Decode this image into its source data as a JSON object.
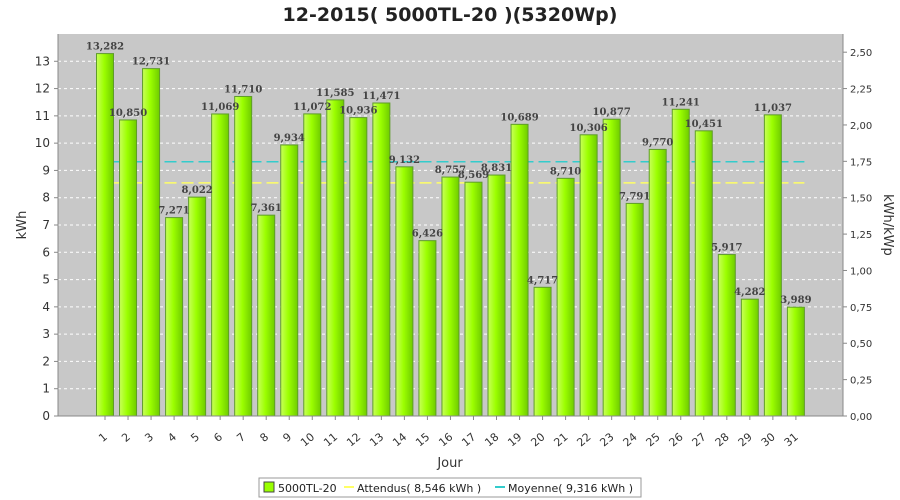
{
  "chart_data": {
    "type": "bar",
    "title": "12-2015( 5000TL-20 )(5320Wp)",
    "xlabel": "Jour",
    "ylabel": "kWh",
    "y2label": "kWh/kWp",
    "ylim": [
      0,
      14
    ],
    "y2lim": [
      0,
      2.625
    ],
    "yticks": [
      "0",
      "1",
      "2",
      "3",
      "4",
      "5",
      "6",
      "7",
      "8",
      "9",
      "10",
      "11",
      "12",
      "13"
    ],
    "y2ticks": [
      "0,00",
      "0,25",
      "0,50",
      "0,75",
      "1,00",
      "1,25",
      "1,50",
      "1,75",
      "2,00",
      "2,25",
      "2,50"
    ],
    "categories": [
      "1",
      "2",
      "3",
      "4",
      "5",
      "6",
      "7",
      "8",
      "9",
      "10",
      "11",
      "12",
      "13",
      "14",
      "15",
      "16",
      "17",
      "18",
      "19",
      "20",
      "21",
      "22",
      "23",
      "24",
      "25",
      "26",
      "27",
      "28",
      "29",
      "30",
      "31"
    ],
    "series": [
      {
        "name": "5000TL-20",
        "values": [
          13.282,
          10.85,
          12.731,
          7.271,
          8.022,
          11.069,
          11.71,
          7.361,
          9.934,
          11.072,
          11.585,
          10.936,
          11.471,
          9.132,
          6.426,
          8.757,
          8.569,
          8.831,
          10.689,
          4.717,
          8.71,
          10.306,
          10.877,
          7.791,
          9.77,
          11.241,
          10.451,
          5.917,
          4.282,
          11.037,
          3.989
        ],
        "labels": [
          "13,282",
          "10,850",
          "12,731",
          "7,271",
          "8,022",
          "11,069",
          "11,710",
          "7,361",
          "9,934",
          "11,072",
          "11,585",
          "10,936",
          "11,471",
          "9,132",
          "6,426",
          "8,757",
          "8,569",
          "8,831",
          "10,689",
          "4,717",
          "8,710",
          "10,306",
          "10,877",
          "7,791",
          "9,770",
          "11,241",
          "10,451",
          "5,917",
          "4,282",
          "11,037",
          "3,989"
        ],
        "color": "#99ff00"
      }
    ],
    "lines": [
      {
        "name": "Attendus( 8,546 kWh )",
        "value": 8.546,
        "color": "#ffff66"
      },
      {
        "name": "Moyenne( 9,316 kWh )",
        "value": 9.316,
        "color": "#33cccc"
      }
    ],
    "grid": true,
    "legend_position": "bottom"
  }
}
